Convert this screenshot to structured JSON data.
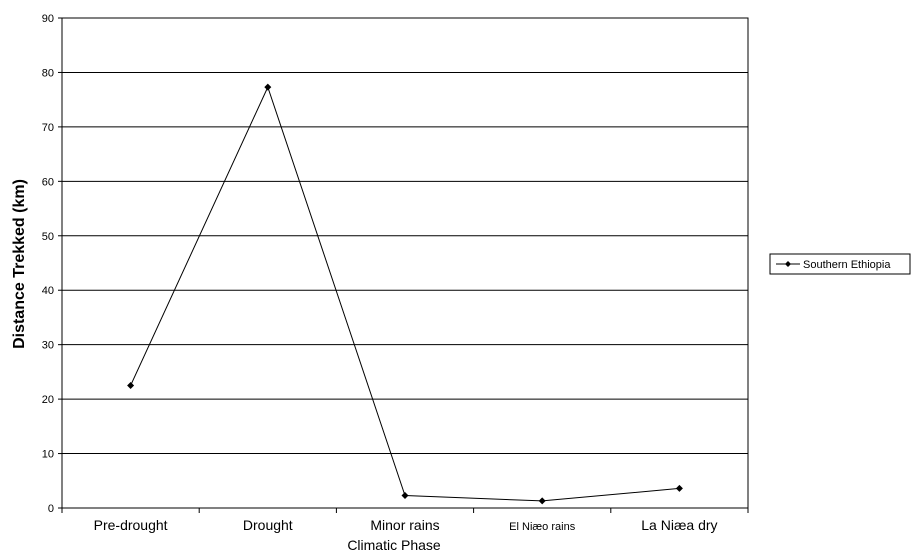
{
  "chart_data": {
    "type": "line",
    "categories": [
      "Pre-drought",
      "Drought",
      "Minor rains",
      "El Niæo rains",
      "La Niæa dry"
    ],
    "series": [
      {
        "name": "Southern Ethiopia",
        "values": [
          22.5,
          77.3,
          2.3,
          1.3,
          3.6
        ]
      }
    ],
    "xlabel": "Climatic Phase",
    "ylabel": "Distance Trekked (km)",
    "ylim": [
      0,
      90
    ],
    "yticks": [
      0,
      10,
      20,
      30,
      40,
      50,
      60,
      70,
      80,
      90
    ],
    "grid": "horizontal",
    "legend": "right",
    "colors": {
      "line": "#000000",
      "grid": "#000000",
      "background": "#ffffff"
    }
  }
}
